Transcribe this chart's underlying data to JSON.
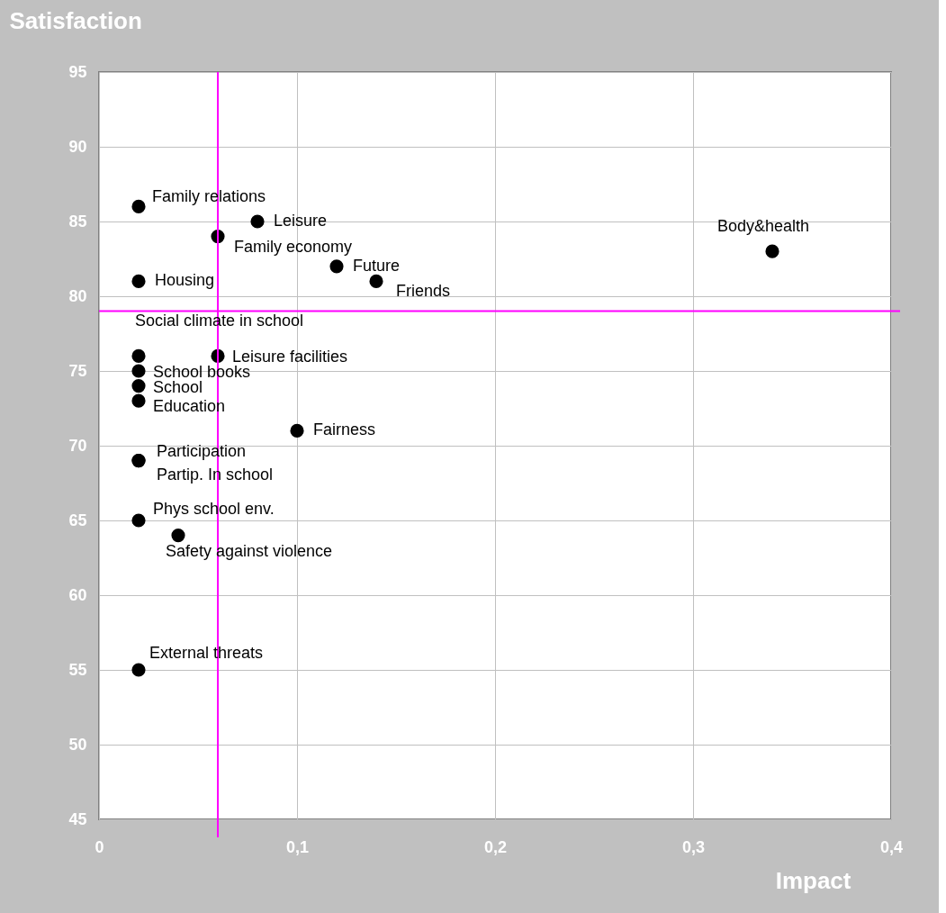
{
  "chart_data": {
    "type": "scatter",
    "xlabel": "Impact",
    "ylabel": "Satisfaction",
    "series": [
      {
        "color": "#000000",
        "x": [
          0.02,
          0.08,
          0.06,
          0.12,
          0.14,
          0.34,
          0.02,
          0.02,
          0.06,
          0.02,
          0.02,
          0.02,
          0.1,
          0.02,
          0.02,
          0.02,
          0.04,
          0.02
        ],
        "values": [
          86,
          85,
          84,
          82,
          81,
          83,
          81,
          76,
          76,
          75,
          74,
          73,
          71,
          69,
          69,
          65,
          64,
          55
        ],
        "value_labels": [
          "Family relations",
          "Leisure",
          "Family economy",
          "Future",
          "Friends",
          "Body&health",
          "Housing",
          "Social climate in school",
          "Leisure facilities",
          "School books",
          "School",
          "Education",
          "Fairness",
          "Participation",
          "Partip. In school",
          "Phys school env.",
          "Safety against violence",
          "External threats"
        ]
      }
    ],
    "xlim": [
      0,
      0.4
    ],
    "ylim": [
      45,
      95
    ],
    "xticks": [
      {
        "value": 0,
        "label": "0"
      },
      {
        "value": 0.1,
        "label": "0,1"
      },
      {
        "value": 0.2,
        "label": "0,2"
      },
      {
        "value": 0.3,
        "label": "0,3"
      },
      {
        "value": 0.4,
        "label": "0,4"
      }
    ],
    "yticks": [
      45,
      50,
      55,
      60,
      65,
      70,
      75,
      80,
      85,
      90,
      95
    ],
    "ref_lines": [
      {
        "axis": "x",
        "value": 0.06,
        "color": "#ff00ff"
      },
      {
        "axis": "y",
        "value": 79,
        "color": "#ff00ff"
      }
    ],
    "grid": true,
    "marker": "circle"
  }
}
